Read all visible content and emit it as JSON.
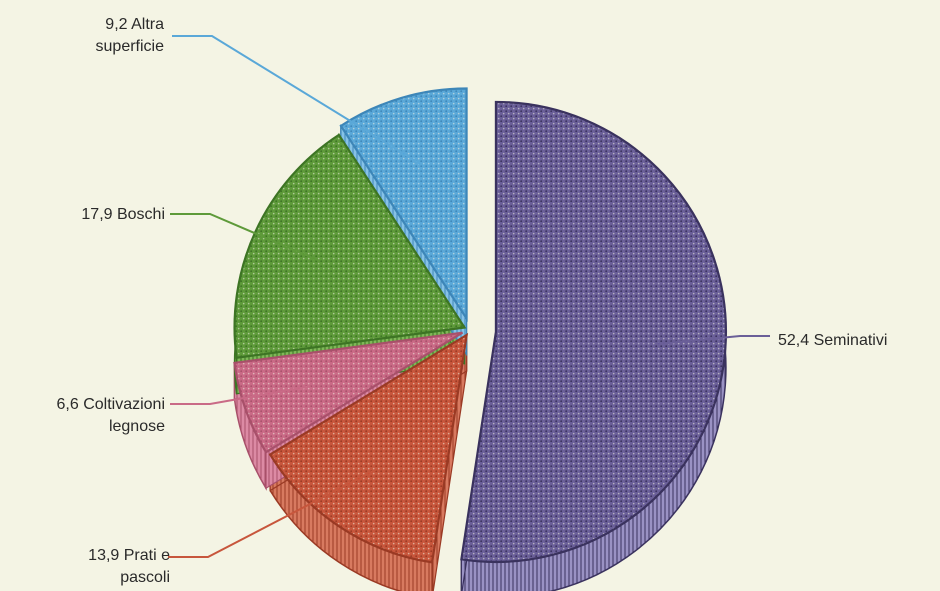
{
  "chart_data": {
    "type": "pie",
    "title": "",
    "slices": [
      {
        "label_lines": [
          "52,4 Seminativi"
        ],
        "value": 52.4,
        "color": "#6a5f98",
        "dot_color": "#3a325e",
        "side_color": "#9a92c4"
      },
      {
        "label_lines": [
          "13,9 Prati e",
          "pascoli"
        ],
        "value": 13.9,
        "color": "#c7563c",
        "dot_color": "#9a3a24",
        "side_color": "#d87a60"
      },
      {
        "label_lines": [
          "6,6 Coltivazioni",
          "legnose"
        ],
        "value": 6.6,
        "color": "#c96a86",
        "dot_color": "#a8506a",
        "side_color": "#dc8aa4"
      },
      {
        "label_lines": [
          "17,9 Boschi"
        ],
        "value": 17.9,
        "color": "#5e9a3a",
        "dot_color": "#3d7424",
        "side_color": "#7fb858"
      },
      {
        "label_lines": [
          "9,2 Altra",
          "superficie"
        ],
        "value": 9.2,
        "color": "#5aa8d8",
        "dot_color": "#3d86b8",
        "side_color": "#86c2e6"
      }
    ]
  }
}
